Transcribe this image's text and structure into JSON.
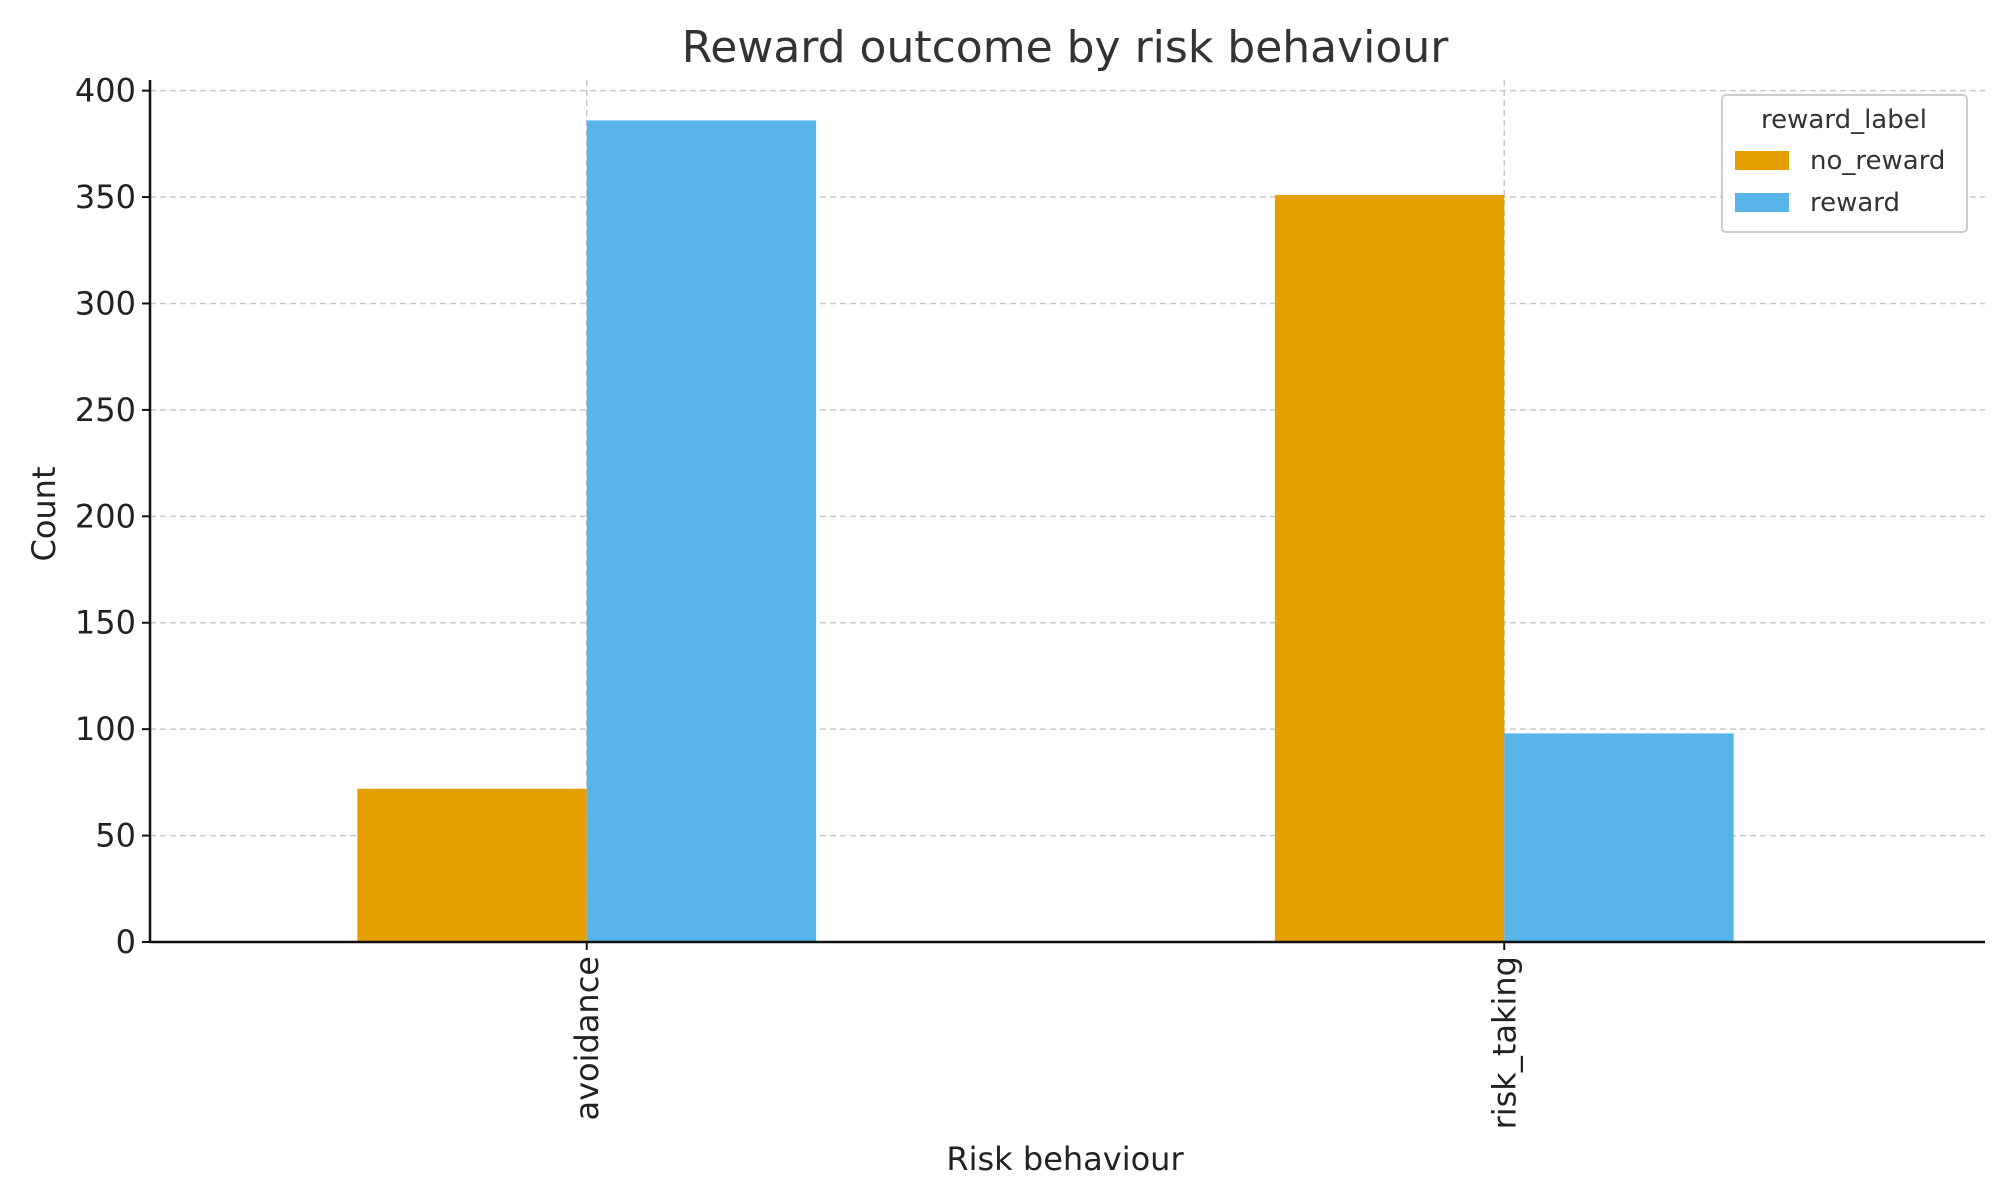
{
  "chart_data": {
    "type": "bar",
    "title": "Reward outcome by risk behaviour",
    "xlabel": "Risk behaviour",
    "ylabel": "Count",
    "categories": [
      "avoidance",
      "risk_taking"
    ],
    "series": [
      {
        "name": "no_reward",
        "color": "#E69F00",
        "values": [
          72,
          351
        ]
      },
      {
        "name": "reward",
        "color": "#56B4E9",
        "values": [
          386,
          98
        ]
      }
    ],
    "ylim": [
      0,
      405
    ],
    "yticks": [
      0,
      50,
      100,
      150,
      200,
      250,
      300,
      350,
      400
    ],
    "grid": true,
    "legend": {
      "title": "reward_label",
      "position": "top-right"
    }
  }
}
